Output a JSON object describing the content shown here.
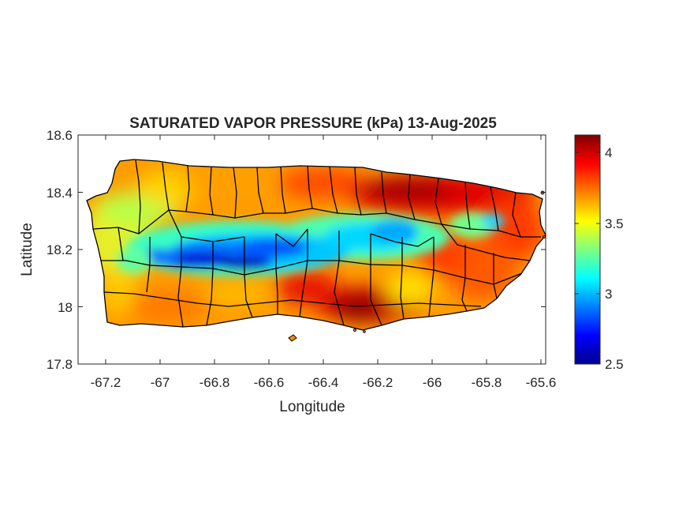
{
  "map": {
    "title": "SATURATED VAPOR PRESSURE (kPa) 13-Aug-2025",
    "xlabel": "Longitude",
    "ylabel": "Latitude",
    "region": "Puerto Rico",
    "quantity_unit": "kPa",
    "xlim": [
      -67.3,
      -65.58
    ],
    "ylim": [
      17.8,
      18.6
    ],
    "xticks": [
      "-67.2",
      "-67",
      "-66.8",
      "-66.6",
      "-66.4",
      "-66.2",
      "-66",
      "-65.8",
      "-65.6"
    ],
    "yticks": [
      "18.6",
      "18.4",
      "18.2",
      "18",
      "17.8"
    ],
    "colorbar": {
      "colormap": "jet",
      "range": [
        2.5,
        4.15
      ],
      "ticks": [
        "4",
        "3.5",
        "3",
        "2.5"
      ]
    },
    "field_summary": [
      {
        "area": "northeast coast",
        "level": "high",
        "approx_kPa": 4.1
      },
      {
        "area": "south coast",
        "level": "high",
        "approx_kPa": 4.0
      },
      {
        "area": "west coast",
        "level": "moderate",
        "approx_kPa": 3.5
      },
      {
        "area": "central mountains (Cordillera Central)",
        "level": "low",
        "approx_kPa": 2.6
      }
    ],
    "colors": {
      "low": "#00008f",
      "mid": "#40ffbf",
      "high": "#800000",
      "boundary": "#000000"
    }
  }
}
